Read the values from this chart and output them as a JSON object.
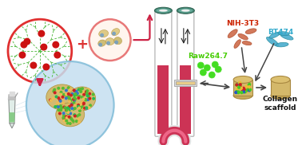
{
  "bg_color": "#ffffff",
  "labels": {
    "NIH3T3": "NIH-3T3",
    "Raw": "Raw264.7",
    "BT474": "BT474",
    "Collagen": "Collagen\nscaffold"
  },
  "colors": {
    "red_circle": "#e03030",
    "pink_circle": "#e87878",
    "blue_circle": "#80bcd8",
    "green_network": "#55bb44",
    "red_dots": "#cc1111",
    "cream": "#e8cc88",
    "NIH3T3_text": "#cc2200",
    "Raw_text": "#44cc00",
    "BT474_text": "#33aacc",
    "Collagen_text": "#111111",
    "arrow_red": "#cc2244",
    "arrow_dark": "#444444",
    "tube_pink": "#cc3355",
    "tube_border": "#bbbbbb",
    "spheroid_tan": "#d4b86a",
    "cap_teal": "#559988"
  }
}
